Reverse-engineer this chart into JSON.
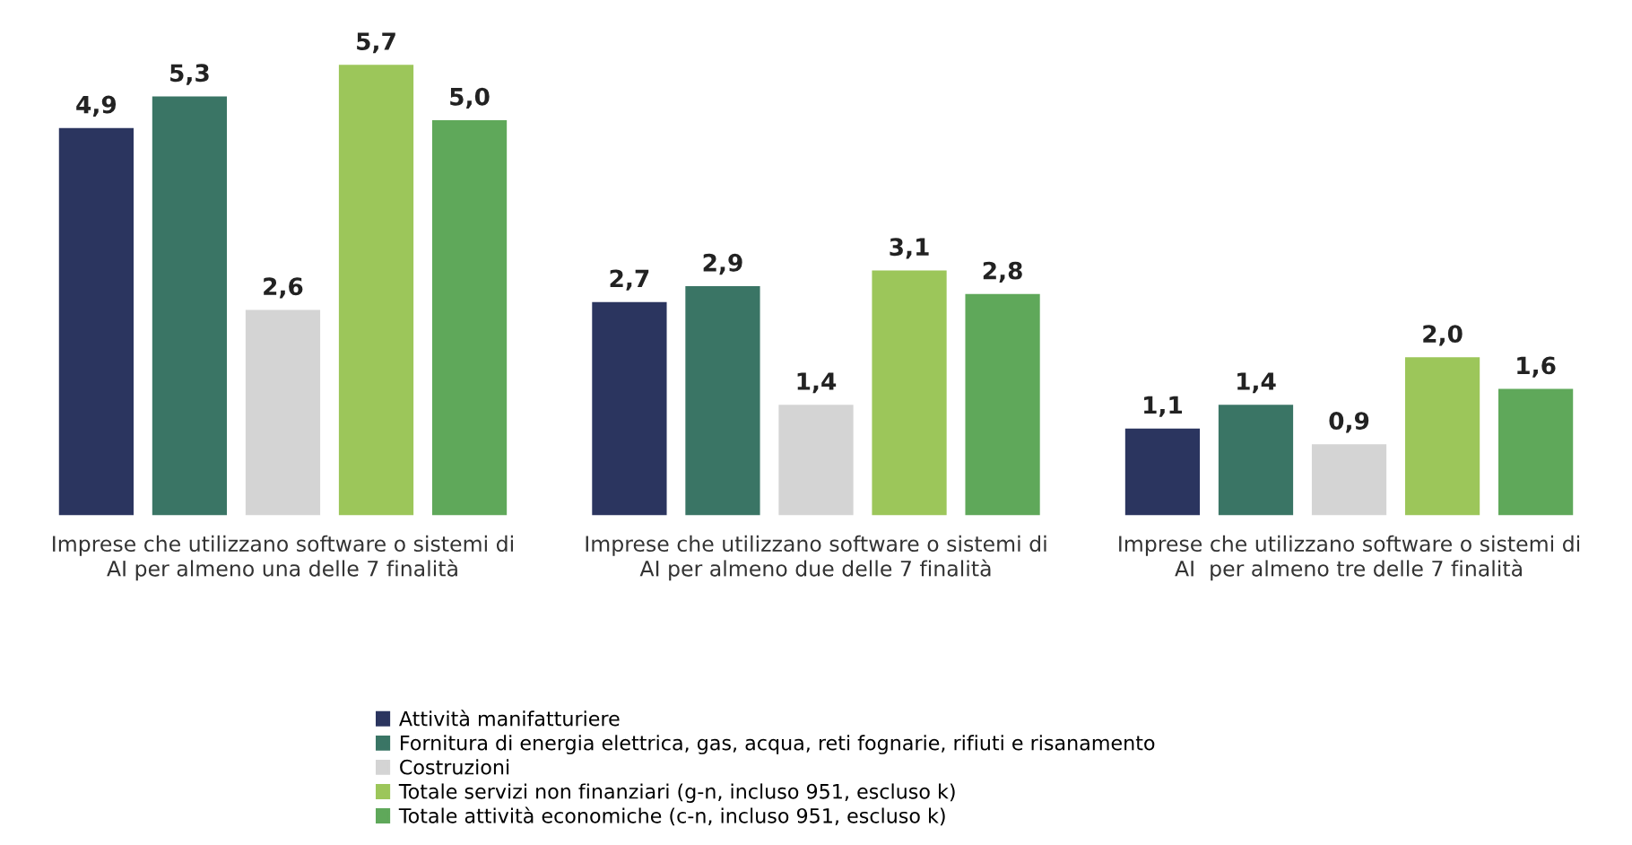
{
  "chart_data": {
    "type": "bar",
    "categories": [
      "Imprese che utilizzano software o sistemi di\nAI per almeno una delle 7 finalità",
      "Imprese che utilizzano software o sistemi di\nAI per almeno due delle 7 finalità",
      "Imprese che utilizzano software o sistemi di\nAI  per almeno tre delle 7 finalità"
    ],
    "series": [
      {
        "name": "Attività manifatturiere",
        "color": "#2b355f",
        "values": [
          4.9,
          2.7,
          1.1
        ],
        "value_labels": [
          "4,9",
          "2,7",
          "1,1"
        ]
      },
      {
        "name": "Fornitura di energia elettrica, gas, acqua, reti fognarie, rifiuti e risanamento",
        "color": "#3a7565",
        "values": [
          5.3,
          2.9,
          1.4
        ],
        "value_labels": [
          "5,3",
          "2,9",
          "1,4"
        ]
      },
      {
        "name": "Costruzioni",
        "color": "#d4d4d4",
        "values": [
          2.6,
          1.4,
          0.9
        ],
        "value_labels": [
          "2,6",
          "1,4",
          "0,9"
        ]
      },
      {
        "name": "Totale servizi non finanziari (g-n, incluso 951, escluso k)",
        "color": "#9cc65a",
        "values": [
          5.7,
          3.1,
          2.0
        ],
        "value_labels": [
          "5,7",
          "3,1",
          "2,0"
        ]
      },
      {
        "name": "Totale attività economiche (c-n, incluso 951, escluso k)",
        "color": "#5fa85a",
        "values": [
          5.0,
          2.8,
          1.6
        ],
        "value_labels": [
          "5,0",
          "2,8",
          "1,6"
        ]
      }
    ],
    "legend": "bottom left",
    "grid": false
  }
}
